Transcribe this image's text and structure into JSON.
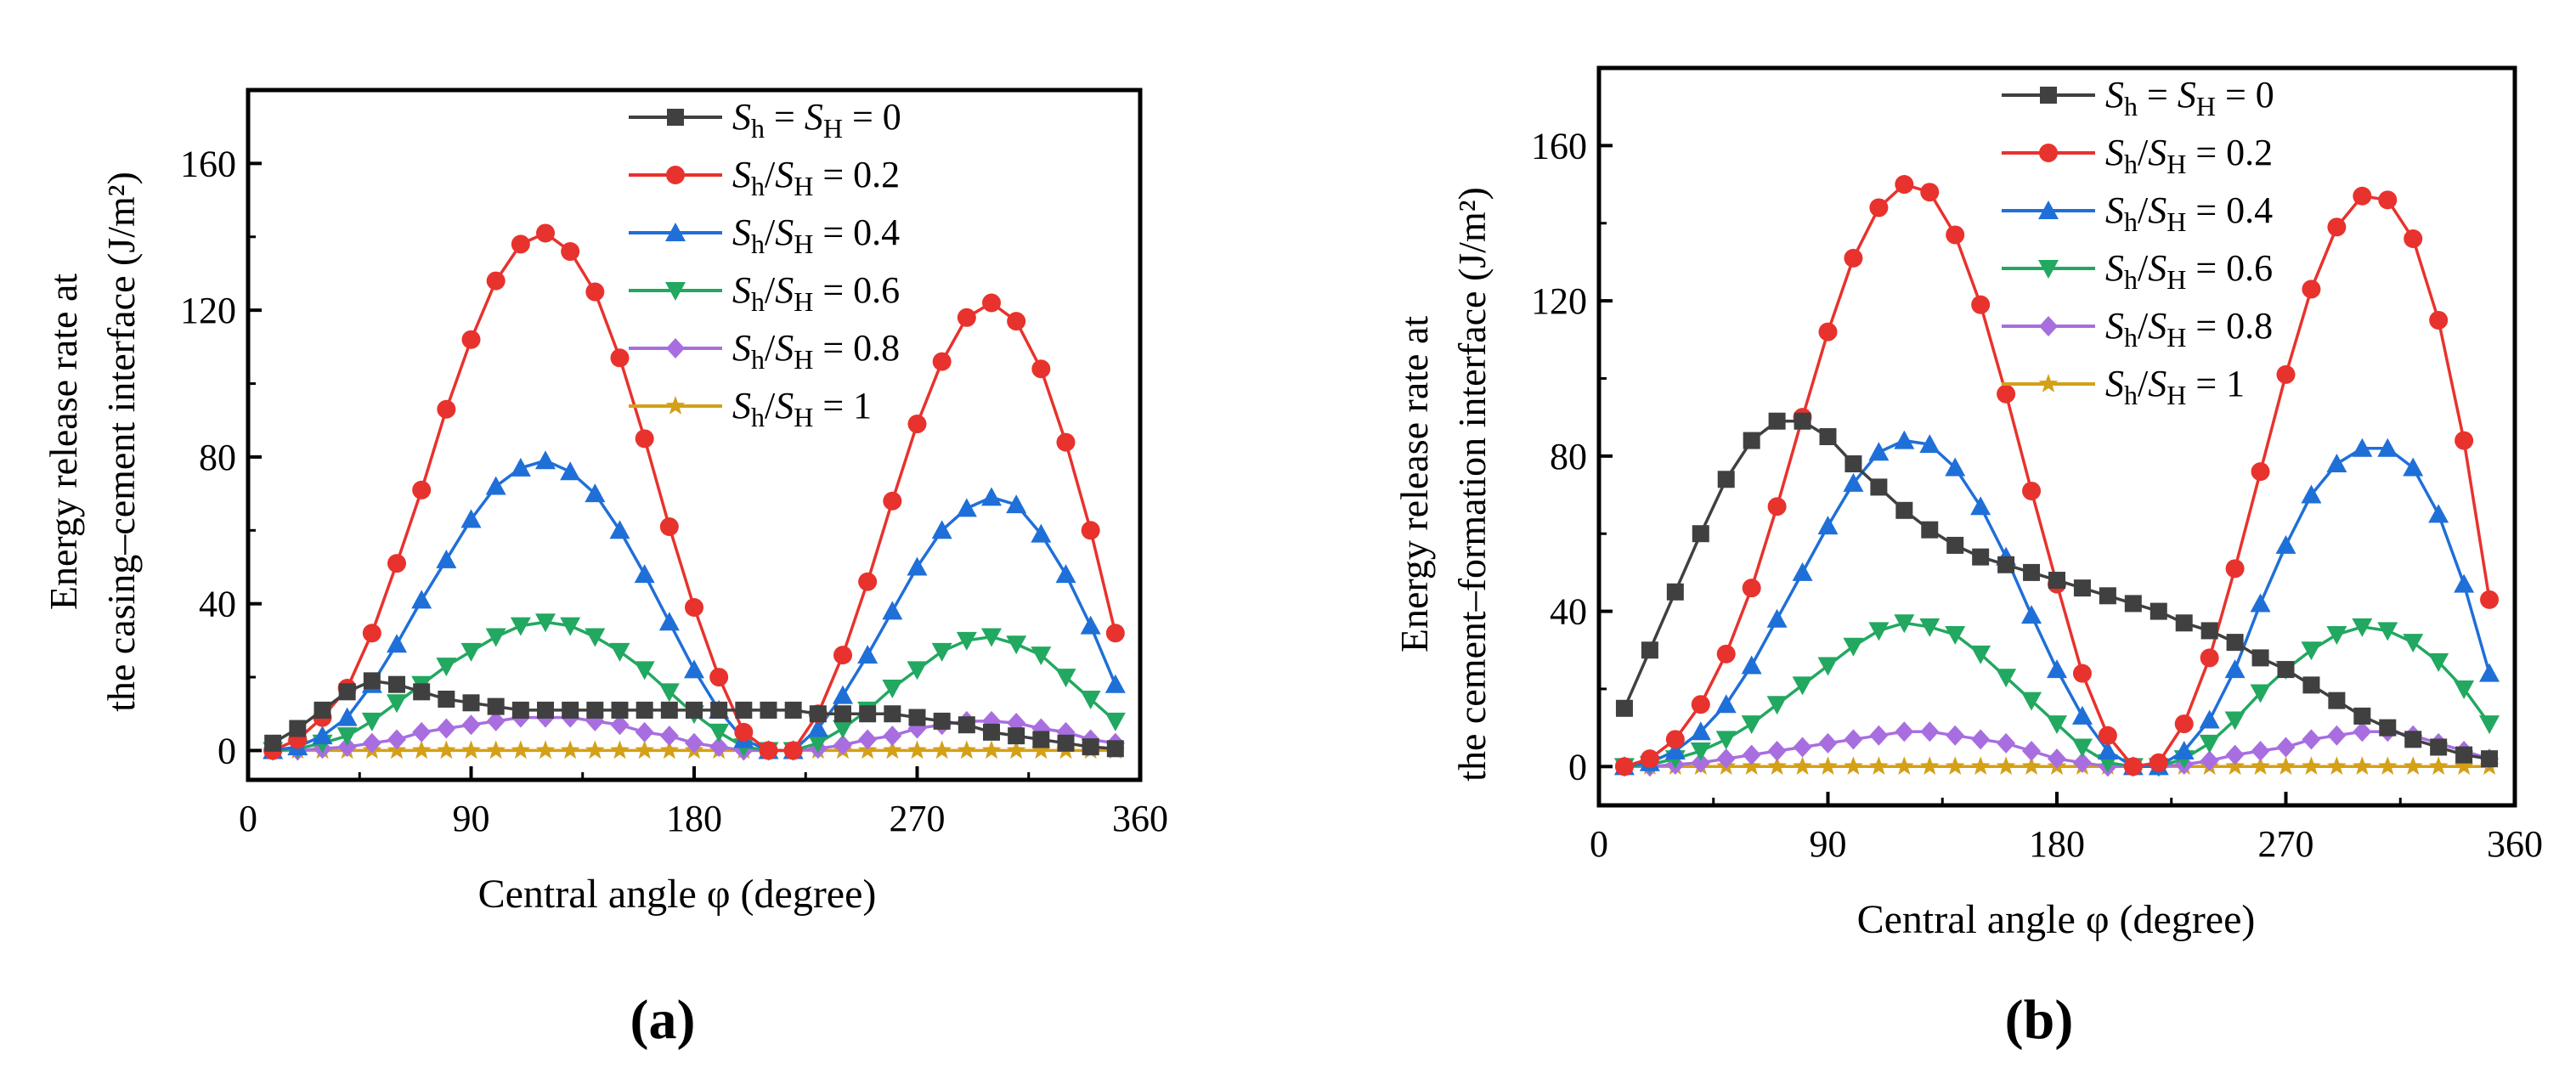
{
  "colors": {
    "s0": "#404040",
    "s02": "#e8322d",
    "s04": "#1f6fd8",
    "s06": "#22a860",
    "s08": "#a86ee0",
    "s1": "#d4a017"
  },
  "chart_data": [
    {
      "type": "line",
      "panel_label": "(a)",
      "xlabel": "Central angle φ (degree)",
      "ylabel_line1": "Energy release rate at",
      "ylabel_line2": "the casing–cement interface (J/m²)",
      "xlim": [
        0,
        360
      ],
      "ylim": [
        -8,
        180
      ],
      "xticks": [
        0,
        90,
        180,
        270,
        360
      ],
      "yticks": [
        0,
        40,
        80,
        120,
        160
      ],
      "legend_position": "top-right",
      "x": [
        10,
        20,
        30,
        40,
        50,
        60,
        70,
        80,
        90,
        100,
        110,
        120,
        130,
        140,
        150,
        160,
        170,
        180,
        190,
        200,
        210,
        220,
        230,
        240,
        250,
        260,
        270,
        280,
        290,
        300,
        310,
        320,
        330,
        340,
        350
      ],
      "series": [
        {
          "name": "Sh = SH = 0",
          "marker": "square",
          "color_key": "s0",
          "values": [
            2,
            6,
            11,
            16,
            19,
            18,
            16,
            14,
            13,
            12,
            11,
            11,
            11,
            11,
            11,
            11,
            11,
            11,
            11,
            11,
            11,
            11,
            10,
            10,
            10,
            10,
            9,
            8,
            7,
            5,
            4,
            3,
            2,
            1,
            0.5
          ]
        },
        {
          "name": "Sh/SH = 0.2",
          "marker": "circle",
          "color_key": "s02",
          "values": [
            0,
            3,
            9,
            17,
            32,
            51,
            71,
            93,
            112,
            128,
            138,
            141,
            136,
            125,
            107,
            85,
            61,
            39,
            20,
            5,
            0,
            0,
            10,
            26,
            46,
            68,
            89,
            106,
            118,
            122,
            117,
            104,
            84,
            60,
            32
          ]
        },
        {
          "name": "Sh/SH = 0.4",
          "marker": "triangle-up",
          "color_key": "s04",
          "values": [
            0,
            1,
            4,
            9,
            18,
            29,
            41,
            52,
            63,
            72,
            77,
            79,
            76,
            70,
            60,
            48,
            35,
            22,
            11,
            3,
            0,
            0,
            6,
            15,
            26,
            38,
            50,
            60,
            66,
            69,
            67,
            59,
            48,
            34,
            18
          ]
        },
        {
          "name": "Sh/SH = 0.6",
          "marker": "triangle-down",
          "color_key": "s06",
          "values": [
            0,
            0.5,
            2,
            4,
            8,
            13,
            18,
            23,
            27,
            31,
            34,
            35,
            34,
            31,
            27,
            22,
            16,
            10,
            5,
            1,
            0,
            0,
            2,
            6,
            11,
            17,
            22,
            27,
            30,
            31,
            29,
            26,
            20,
            14,
            8
          ]
        },
        {
          "name": "Sh/SH = 0.8",
          "marker": "diamond",
          "color_key": "s08",
          "values": [
            0,
            0,
            0.5,
            1,
            2,
            3,
            5,
            6,
            7,
            8,
            9,
            9,
            9,
            8,
            7,
            5,
            4,
            2,
            1,
            0,
            0,
            0,
            0.5,
            1.5,
            3,
            4,
            6,
            7,
            8,
            8,
            7.5,
            6,
            5,
            3,
            2
          ]
        },
        {
          "name": "Sh/SH = 1",
          "marker": "star",
          "color_key": "s1",
          "values": [
            0,
            0,
            0,
            0,
            0,
            0,
            0,
            0,
            0,
            0,
            0,
            0,
            0,
            0,
            0,
            0,
            0,
            0,
            0,
            0,
            0,
            0,
            0,
            0,
            0,
            0,
            0,
            0,
            0,
            0,
            0,
            0,
            0,
            0,
            0
          ]
        }
      ]
    },
    {
      "type": "line",
      "panel_label": "(b)",
      "xlabel": "Central angle φ (degree)",
      "ylabel_line1": "Energy release rate at",
      "ylabel_line2": "the cement–formation interface (J/m²)",
      "xlim": [
        0,
        360
      ],
      "ylim": [
        -10,
        180
      ],
      "xticks": [
        0,
        90,
        180,
        270,
        360
      ],
      "yticks": [
        0,
        40,
        80,
        120,
        160
      ],
      "legend_position": "top-right",
      "x": [
        10,
        20,
        30,
        40,
        50,
        60,
        70,
        80,
        90,
        100,
        110,
        120,
        130,
        140,
        150,
        160,
        170,
        180,
        190,
        200,
        210,
        220,
        230,
        240,
        250,
        260,
        270,
        280,
        290,
        300,
        310,
        320,
        330,
        340,
        350
      ],
      "series": [
        {
          "name": "Sh = SH = 0",
          "marker": "square",
          "color_key": "s0",
          "values": [
            15,
            30,
            45,
            60,
            74,
            84,
            89,
            89,
            85,
            78,
            72,
            66,
            61,
            57,
            54,
            52,
            50,
            48,
            46,
            44,
            42,
            40,
            37,
            35,
            32,
            28,
            25,
            21,
            17,
            13,
            10,
            7,
            5,
            3,
            2
          ]
        },
        {
          "name": "Sh/SH = 0.2",
          "marker": "circle",
          "color_key": "s02",
          "values": [
            0,
            2,
            7,
            16,
            29,
            46,
            67,
            90,
            112,
            131,
            144,
            150,
            148,
            137,
            119,
            96,
            71,
            47,
            24,
            8,
            0,
            1,
            11,
            28,
            51,
            76,
            101,
            123,
            139,
            147,
            146,
            136,
            115,
            84,
            43
          ]
        },
        {
          "name": "Sh/SH = 0.4",
          "marker": "triangle-up",
          "color_key": "s04",
          "values": [
            0,
            1,
            4,
            9,
            16,
            26,
            38,
            50,
            62,
            73,
            81,
            84,
            83,
            77,
            67,
            54,
            39,
            25,
            13,
            4,
            0,
            0,
            4,
            12,
            25,
            42,
            57,
            70,
            78,
            82,
            82,
            77,
            65,
            47,
            24
          ]
        },
        {
          "name": "Sh/SH = 0.6",
          "marker": "triangle-down",
          "color_key": "s06",
          "values": [
            0,
            0.5,
            2,
            4,
            7,
            11,
            16,
            21,
            26,
            31,
            35,
            37,
            36,
            34,
            29,
            23,
            17,
            11,
            5,
            1,
            0,
            0,
            2,
            6,
            12,
            19,
            25,
            30,
            34,
            36,
            35,
            32,
            27,
            20,
            11
          ]
        },
        {
          "name": "Sh/SH = 0.8",
          "marker": "diamond",
          "color_key": "s08",
          "values": [
            0,
            0,
            0.5,
            1,
            2,
            3,
            4,
            5,
            6,
            7,
            8,
            9,
            9,
            8,
            7,
            6,
            4,
            2,
            1,
            0,
            0,
            0,
            0.5,
            1.5,
            3,
            4,
            5,
            7,
            8,
            9,
            9,
            8,
            6,
            4,
            2
          ]
        },
        {
          "name": "Sh/SH = 1",
          "marker": "star",
          "color_key": "s1",
          "values": [
            0,
            0,
            0,
            0,
            0,
            0,
            0,
            0,
            0,
            0,
            0,
            0,
            0,
            0,
            0,
            0,
            0,
            0,
            0,
            0,
            0,
            0,
            0,
            0,
            0,
            0,
            0,
            0,
            0,
            0,
            0,
            0,
            0,
            0,
            0
          ]
        }
      ]
    }
  ]
}
